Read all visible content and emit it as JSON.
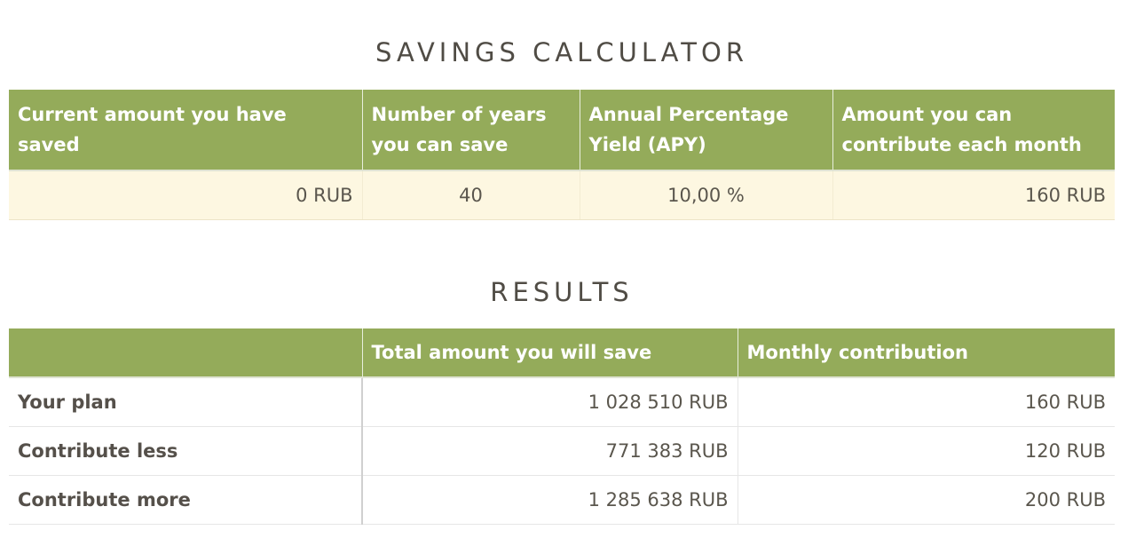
{
  "calculator": {
    "title": "SAVINGS CALCULATOR",
    "headers": [
      "Current amount you have saved",
      "Number of years you can save",
      "Annual Percentage Yield (APY)",
      "Amount you can contribute each month"
    ],
    "values": {
      "current_amount": "0 RUB",
      "years": "40",
      "apy": "10,00 %",
      "monthly": "160 RUB"
    }
  },
  "results": {
    "title": "RESULTS",
    "headers": [
      "",
      "Total amount you will save",
      "Monthly contribution"
    ],
    "rows": [
      {
        "label": "Your plan",
        "total": "1 028 510 RUB",
        "monthly": "160 RUB"
      },
      {
        "label": "Contribute less",
        "total": "771 383 RUB",
        "monthly": "120 RUB"
      },
      {
        "label": "Contribute more",
        "total": "1 285 638 RUB",
        "monthly": "200 RUB"
      }
    ]
  },
  "colors": {
    "header_green": "#94ab5a",
    "input_row_bg": "#fdf7e1",
    "text": "#5a564d"
  }
}
